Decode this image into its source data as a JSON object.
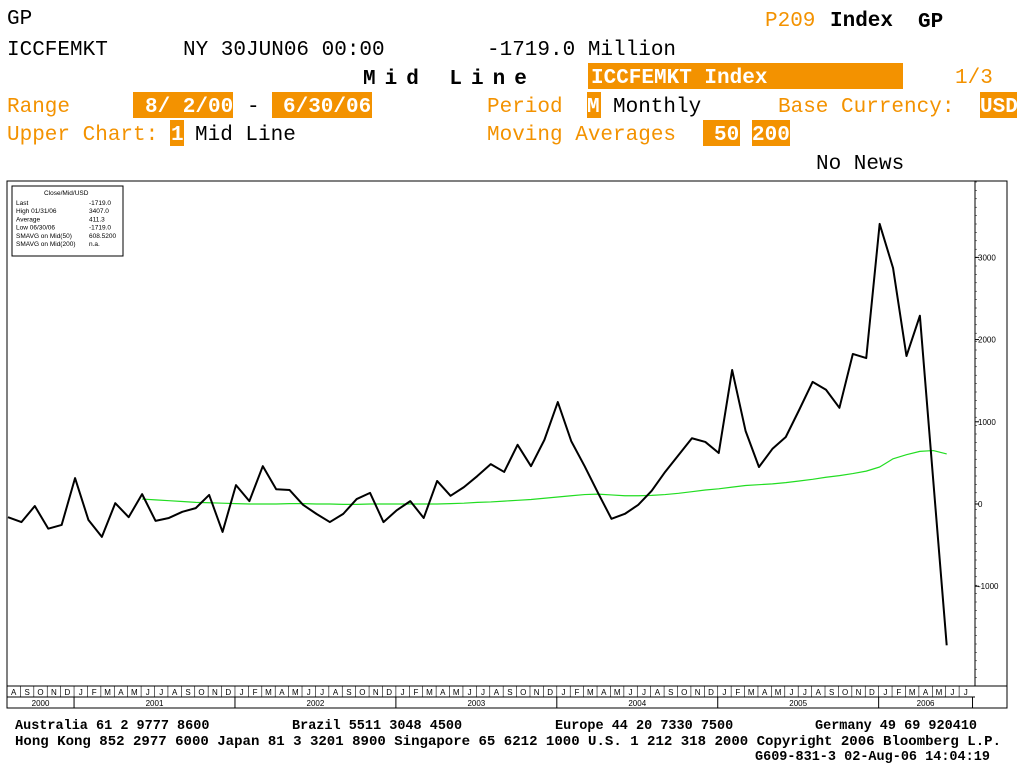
{
  "header": {
    "screen": "GP",
    "page_code": "P209",
    "page_kind": "Index",
    "page_func": "GP",
    "ticker": "ICCFEMKT",
    "as_of": "NY 30JUN06 00:00",
    "last_value": "-1719.0 Million",
    "chart_name": "Mid Line",
    "security": "ICCFEMKT Index",
    "page_count": "1/3",
    "range_label": "Range",
    "range_start": "8/ 2/00",
    "range_sep": "-",
    "range_end": "6/30/06",
    "period_label": "Period",
    "period_code": "M",
    "period_name": "Monthly",
    "currency_label": "Base Currency:",
    "currency": "USD",
    "upper_label": "Upper Chart:",
    "upper_code": "1",
    "upper_name": "Mid Line",
    "ma_label": "Moving Averages",
    "ma_1": "50",
    "ma_2": "200",
    "news": "No News"
  },
  "chart_data": {
    "type": "line",
    "stats_title": "Close/Mid/USD",
    "stats": [
      {
        "label": "Last",
        "value": "-1719.0"
      },
      {
        "label": "High  01/31/06",
        "value": "3407.0"
      },
      {
        "label": "Average",
        "value": "411.3"
      },
      {
        "label": "Low  06/30/06",
        "value": "-1719.0"
      },
      {
        "label": "SMAVG on Mid(50)",
        "value": "608.5200"
      },
      {
        "label": "SMAVG on Mid(200)",
        "value": "n.a."
      }
    ],
    "categories": [
      "A",
      "S",
      "O",
      "N",
      "D",
      "J",
      "F",
      "M",
      "A",
      "M",
      "J",
      "J",
      "A",
      "S",
      "O",
      "N",
      "D",
      "J",
      "F",
      "M",
      "A",
      "M",
      "J",
      "J",
      "A",
      "S",
      "O",
      "N",
      "D",
      "J",
      "F",
      "M",
      "A",
      "M",
      "J",
      "J",
      "A",
      "S",
      "O",
      "N",
      "D",
      "J",
      "F",
      "M",
      "A",
      "M",
      "J",
      "J",
      "A",
      "S",
      "O",
      "N",
      "D",
      "J",
      "F",
      "M",
      "A",
      "M",
      "J",
      "J",
      "A",
      "S",
      "O",
      "N",
      "D",
      "J",
      "F",
      "M",
      "A",
      "M",
      "J",
      "J"
    ],
    "years": [
      "2000",
      "2001",
      "2002",
      "2003",
      "2004",
      "2005",
      "2006"
    ],
    "series": [
      {
        "color": "#000000",
        "values": [
          -160,
          -220,
          -25,
          -300,
          -255,
          315,
          -195,
          -400,
          10,
          -160,
          120,
          -205,
          -170,
          -95,
          -50,
          110,
          -340,
          230,
          35,
          460,
          180,
          170,
          -10,
          -120,
          -220,
          -120,
          60,
          135,
          -220,
          -75,
          35,
          -170,
          280,
          100,
          205,
          340,
          485,
          390,
          720,
          460,
          780,
          1240,
          765,
          460,
          135,
          -180,
          -120,
          -10,
          160,
          390,
          595,
          800,
          755,
          620,
          1630,
          890,
          450,
          670,
          815,
          1145,
          1485,
          1390,
          1170,
          1825,
          1775,
          3407,
          2870,
          1800,
          2290,
          280,
          -1719,
          null
        ]
      },
      {
        "color": "#22dd22",
        "values": [
          null,
          null,
          null,
          null,
          null,
          null,
          null,
          null,
          null,
          null,
          60,
          50,
          40,
          30,
          20,
          15,
          10,
          5,
          0,
          0,
          0,
          5,
          5,
          0,
          0,
          -5,
          -5,
          0,
          0,
          0,
          0,
          0,
          0,
          5,
          10,
          20,
          25,
          35,
          45,
          55,
          70,
          85,
          100,
          115,
          120,
          110,
          100,
          100,
          105,
          115,
          130,
          150,
          170,
          185,
          205,
          225,
          235,
          245,
          260,
          280,
          300,
          325,
          345,
          370,
          400,
          450,
          550,
          600,
          640,
          650,
          608.52,
          null
        ]
      }
    ],
    "ylim": [
      -2214,
      3917
    ],
    "yticks": [
      -1000,
      0,
      1000,
      2000,
      3000
    ]
  },
  "footer": {
    "contacts": [
      "Australia 61 2 9777 8600",
      "Brazil 5511 3048 4500",
      "Europe 44 20 7330 7500",
      "Germany 49 69 920410"
    ],
    "line2": "Hong Kong 852 2977 6000 Japan 81 3 3201 8900 Singapore 65 6212 1000 U.S. 1 212 318 2000 Copyright 2006 Bloomberg L.P.",
    "line3": "G609-831-3 02-Aug-06 14:04:19"
  }
}
